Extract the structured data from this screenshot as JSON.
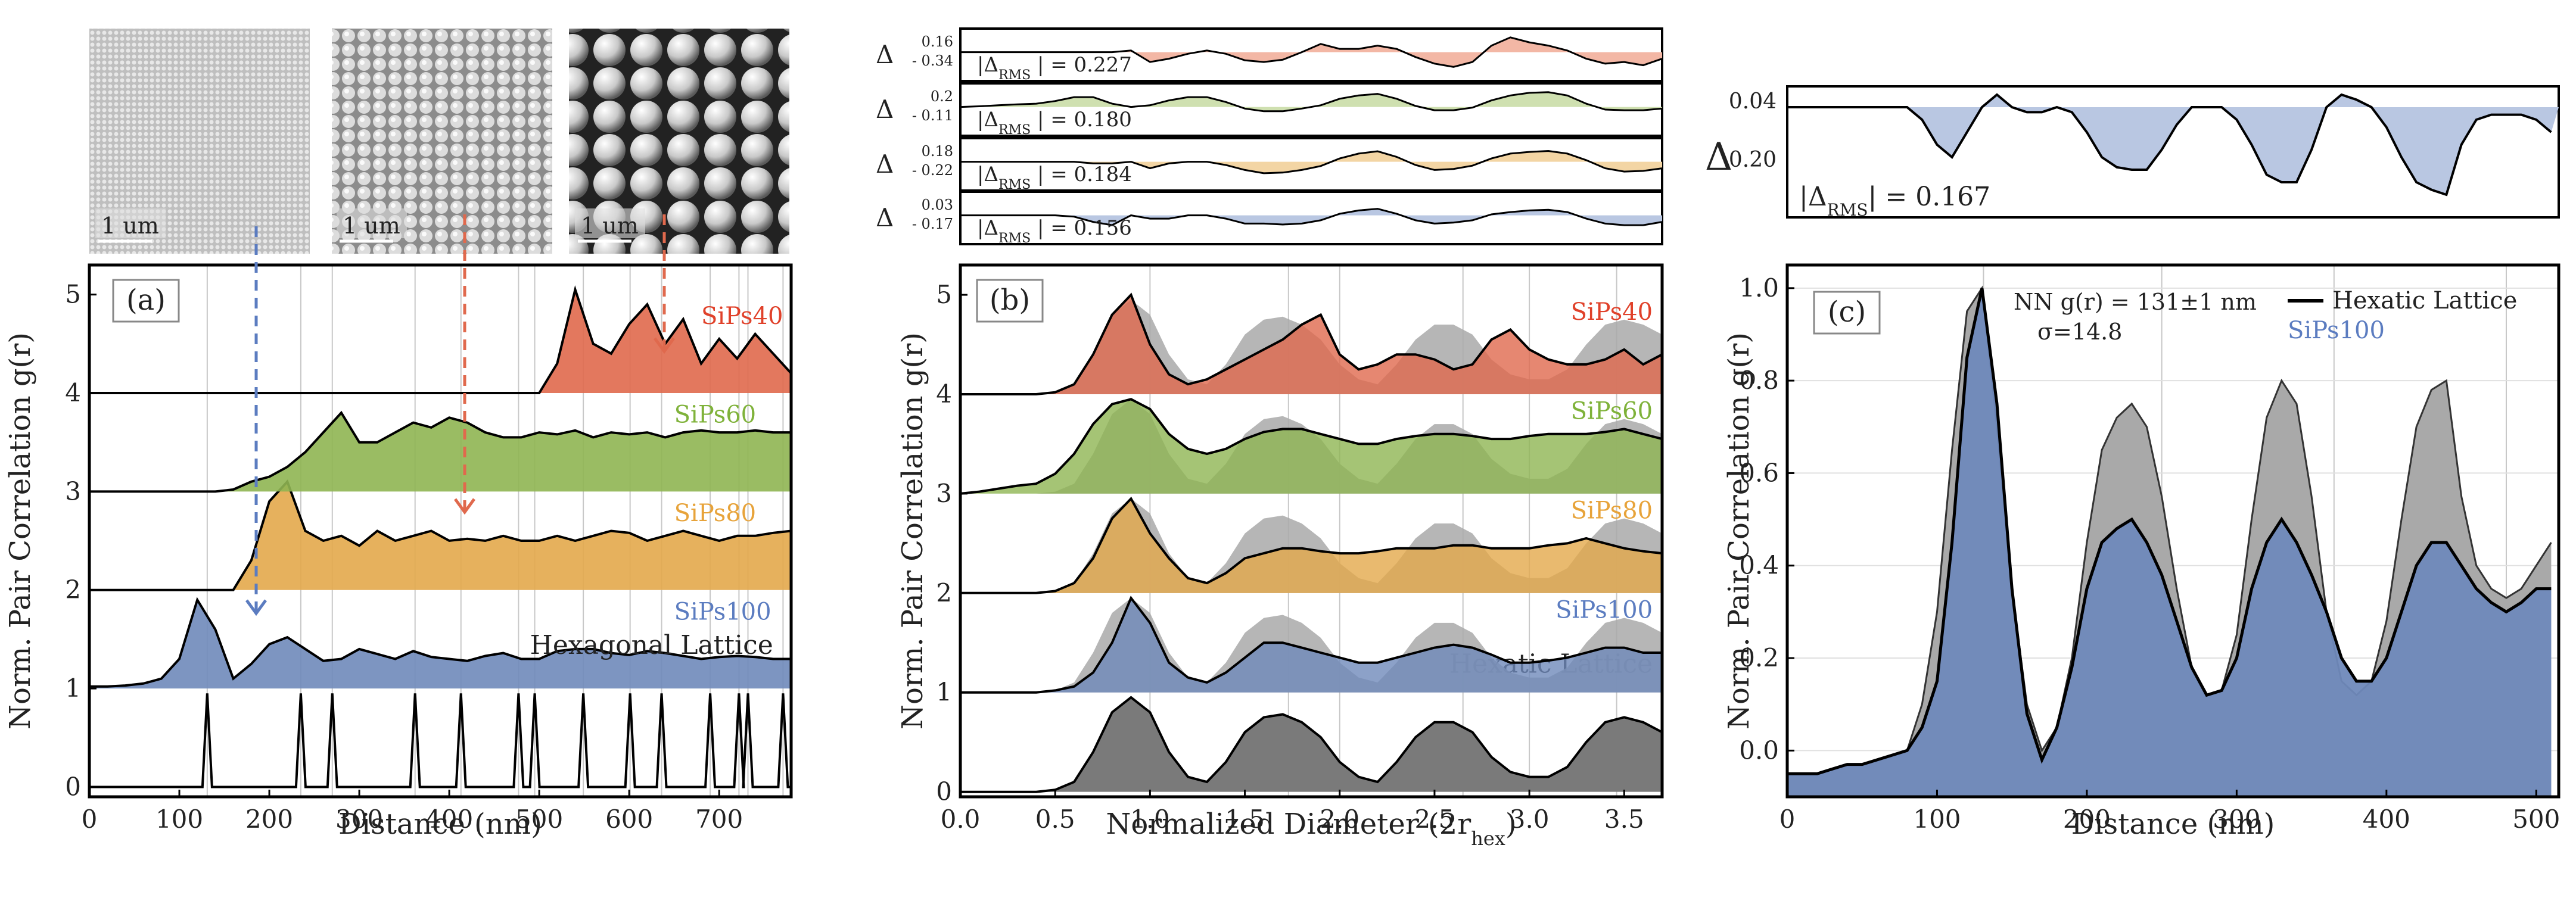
{
  "colors": {
    "siPs40": "#e0694d",
    "siPs40_light": "#f3b7a5",
    "siPs60": "#8fb552",
    "siPs60_light": "#cfe0b0",
    "siPs80": "#e3a94b",
    "siPs80_light": "#f3d5a4",
    "siPs100": "#6f89ba",
    "siPs100_light": "#b9c7e2",
    "hex": "#7a7a7a",
    "grid": "#c8c8c8",
    "lbl40": "#e0412a",
    "lbl60": "#7fb23a",
    "lbl80": "#e7a33a",
    "lbl100": "#5b7cc0"
  },
  "micrographs": {
    "scale_bar": "1 um",
    "count": 3
  },
  "chart_data": [
    {
      "type": "area",
      "panel": "(a)",
      "title": "",
      "xlabel": "Distance  (nm)",
      "ylabel": "Norm. Pair Correlation g(r)",
      "xlim": [
        0,
        780
      ],
      "ylim": [
        -0.1,
        5.3
      ],
      "xticks": [
        0,
        100,
        200,
        300,
        400,
        500,
        600,
        700
      ],
      "yticks": [
        0,
        1,
        2,
        3,
        4,
        5
      ],
      "grid": true,
      "lattice_label": "Hexagonal Lattice",
      "lattice_peaks": [
        131,
        235,
        270,
        362,
        413,
        477,
        495,
        549,
        601,
        636,
        690,
        722,
        732,
        771
      ],
      "series": [
        {
          "name": "SiPs100",
          "offset": 1,
          "start": 0,
          "step": 20,
          "values": [
            0.02,
            0.02,
            0.03,
            0.05,
            0.1,
            0.3,
            0.9,
            0.6,
            0.1,
            0.25,
            0.45,
            0.52,
            0.4,
            0.28,
            0.3,
            0.4,
            0.35,
            0.3,
            0.38,
            0.32,
            0.3,
            0.28,
            0.33,
            0.36,
            0.3,
            0.3,
            0.38,
            0.4,
            0.4,
            0.36,
            0.34,
            0.38,
            0.36,
            0.33,
            0.3,
            0.32,
            0.33,
            0.32,
            0.3,
            0.3
          ]
        },
        {
          "name": "SiPs80",
          "offset": 2,
          "start": 0,
          "step": 20,
          "values": [
            0,
            0,
            0,
            0,
            0,
            0,
            0,
            0,
            0,
            0.3,
            0.9,
            1.1,
            0.6,
            0.5,
            0.55,
            0.45,
            0.6,
            0.5,
            0.55,
            0.6,
            0.5,
            0.52,
            0.5,
            0.55,
            0.5,
            0.5,
            0.55,
            0.5,
            0.55,
            0.6,
            0.58,
            0.5,
            0.55,
            0.6,
            0.55,
            0.5,
            0.55,
            0.55,
            0.58,
            0.6
          ]
        },
        {
          "name": "SiPs60",
          "offset": 3,
          "start": 0,
          "step": 20,
          "values": [
            0,
            0,
            0,
            0,
            0,
            0,
            0,
            0,
            0.02,
            0.1,
            0.15,
            0.25,
            0.4,
            0.6,
            0.8,
            0.5,
            0.5,
            0.6,
            0.7,
            0.65,
            0.75,
            0.7,
            0.6,
            0.55,
            0.55,
            0.6,
            0.58,
            0.62,
            0.55,
            0.6,
            0.58,
            0.6,
            0.55,
            0.6,
            0.62,
            0.6,
            0.6,
            0.62,
            0.6,
            0.6
          ]
        },
        {
          "name": "SiPs40",
          "offset": 4,
          "start": 0,
          "step": 20,
          "values": [
            0,
            0,
            0,
            0,
            0,
            0,
            0,
            0,
            0,
            0,
            0,
            0,
            0,
            0,
            0,
            0,
            0,
            0,
            0,
            0,
            0,
            0,
            0,
            0,
            0,
            0,
            0.3,
            1.05,
            0.5,
            0.4,
            0.7,
            0.9,
            0.5,
            0.75,
            0.3,
            0.55,
            0.35,
            0.6,
            0.4,
            0.2
          ]
        }
      ]
    },
    {
      "type": "area",
      "panel": "(b)",
      "xlabel": "Normalized Diameter (2r",
      "xlabel_sub": "hex",
      "xlabel_end": ")",
      "ylabel": "Norm. Pair Correlation g(r)",
      "xlim": [
        0,
        3.7
      ],
      "ylim": [
        -0.05,
        5.3
      ],
      "xticks": [
        0.0,
        0.5,
        1.0,
        1.5,
        2.0,
        2.5,
        3.0,
        3.5
      ],
      "xtick_labels": [
        "0.0",
        "0.5",
        "1.0",
        "1.5",
        "2.0",
        "2.5",
        "3.0",
        "3.5"
      ],
      "yticks": [
        0,
        1,
        2,
        3,
        4,
        5
      ],
      "grid": true,
      "lattice_label": "Hexatic Lattice",
      "hexatic": {
        "start": 0,
        "step": 0.1,
        "values": [
          0,
          0,
          0,
          0,
          0,
          0.02,
          0.1,
          0.4,
          0.8,
          0.95,
          0.8,
          0.4,
          0.15,
          0.1,
          0.3,
          0.6,
          0.75,
          0.78,
          0.7,
          0.55,
          0.3,
          0.15,
          0.1,
          0.3,
          0.55,
          0.7,
          0.7,
          0.6,
          0.35,
          0.2,
          0.15,
          0.15,
          0.25,
          0.5,
          0.7,
          0.75,
          0.7,
          0.6
        ]
      },
      "series": [
        {
          "name": "SiPs100",
          "offset": 1,
          "start": 0,
          "step": 0.1,
          "values": [
            0,
            0,
            0,
            0,
            0,
            0.02,
            0.06,
            0.2,
            0.5,
            0.95,
            0.7,
            0.3,
            0.15,
            0.1,
            0.2,
            0.35,
            0.5,
            0.5,
            0.45,
            0.4,
            0.35,
            0.3,
            0.3,
            0.35,
            0.4,
            0.45,
            0.48,
            0.45,
            0.38,
            0.3,
            0.3,
            0.32,
            0.35,
            0.4,
            0.45,
            0.45,
            0.4,
            0.4
          ]
        },
        {
          "name": "SiPs80",
          "offset": 2,
          "start": 0,
          "step": 0.1,
          "values": [
            0,
            0,
            0,
            0,
            0,
            0.02,
            0.1,
            0.35,
            0.75,
            0.95,
            0.6,
            0.35,
            0.15,
            0.1,
            0.2,
            0.35,
            0.4,
            0.45,
            0.45,
            0.42,
            0.4,
            0.4,
            0.42,
            0.45,
            0.45,
            0.45,
            0.48,
            0.48,
            0.45,
            0.45,
            0.45,
            0.48,
            0.5,
            0.55,
            0.5,
            0.45,
            0.42,
            0.4
          ]
        },
        {
          "name": "SiPs60",
          "offset": 3,
          "start": 0,
          "step": 0.1,
          "values": [
            0,
            0.02,
            0.05,
            0.08,
            0.1,
            0.2,
            0.4,
            0.7,
            0.9,
            0.95,
            0.85,
            0.6,
            0.45,
            0.4,
            0.45,
            0.55,
            0.62,
            0.65,
            0.65,
            0.6,
            0.55,
            0.5,
            0.5,
            0.55,
            0.58,
            0.6,
            0.6,
            0.58,
            0.55,
            0.55,
            0.58,
            0.6,
            0.6,
            0.6,
            0.62,
            0.65,
            0.6,
            0.55
          ]
        },
        {
          "name": "SiPs40",
          "offset": 4,
          "start": 0,
          "step": 0.1,
          "values": [
            0,
            0,
            0,
            0,
            0,
            0.02,
            0.1,
            0.4,
            0.8,
            1.0,
            0.5,
            0.2,
            0.1,
            0.15,
            0.25,
            0.35,
            0.45,
            0.55,
            0.7,
            0.8,
            0.4,
            0.25,
            0.3,
            0.4,
            0.4,
            0.35,
            0.25,
            0.3,
            0.55,
            0.65,
            0.45,
            0.35,
            0.3,
            0.3,
            0.35,
            0.45,
            0.3,
            0.4
          ]
        }
      ],
      "delta_rms": [
        {
          "name": "SiPs40",
          "top": "0.16",
          "bottom": "- 0.34",
          "label": "= 0.227"
        },
        {
          "name": "SiPs60",
          "top": "0.2",
          "bottom": "- 0.11",
          "label": "= 0.180"
        },
        {
          "name": "SiPs80",
          "top": "0.18",
          "bottom": "- 0.22",
          "label": "= 0.184"
        },
        {
          "name": "SiPs100",
          "top": "0.03",
          "bottom": "- 0.17",
          "label": "= 0.156"
        }
      ]
    },
    {
      "type": "area",
      "panel": "(c)",
      "xlabel": "Distance  (nm)",
      "ylabel": "Norm. Pair Correlation g(r)",
      "xlim": [
        0,
        515
      ],
      "ylim": [
        -0.1,
        1.05
      ],
      "xticks": [
        0,
        100,
        200,
        300,
        400,
        500
      ],
      "yticks": [
        0.0,
        0.2,
        0.4,
        0.6,
        0.8,
        1.0
      ],
      "ytick_labels": [
        "0.0",
        "0.2",
        "0.4",
        "0.6",
        "0.8",
        "1.0"
      ],
      "grid": true,
      "annotation": "NN g(r) = 131±1 nm",
      "annotation2": "σ=14.8",
      "legend": [
        {
          "name": "Hexatic Lattice"
        },
        {
          "name": "SiPs100"
        }
      ],
      "delta": {
        "top": "0.04",
        "bottom": "0.20",
        "label": "= 0.167"
      },
      "hexatic": {
        "start": 0,
        "step": 10,
        "values": [
          -0.05,
          -0.05,
          -0.05,
          -0.04,
          -0.03,
          -0.03,
          -0.02,
          -0.01,
          0.0,
          0.1,
          0.3,
          0.65,
          0.95,
          1.0,
          0.7,
          0.35,
          0.1,
          0.0,
          0.05,
          0.2,
          0.45,
          0.65,
          0.72,
          0.75,
          0.7,
          0.55,
          0.35,
          0.18,
          0.12,
          0.13,
          0.25,
          0.5,
          0.72,
          0.8,
          0.75,
          0.55,
          0.3,
          0.15,
          0.12,
          0.15,
          0.28,
          0.5,
          0.7,
          0.78,
          0.8,
          0.55,
          0.4,
          0.35,
          0.33,
          0.35,
          0.4,
          0.45
        ]
      },
      "series": [
        {
          "name": "SiPs100",
          "start": 0,
          "step": 10,
          "values": [
            -0.05,
            -0.05,
            -0.05,
            -0.04,
            -0.03,
            -0.03,
            -0.02,
            -0.01,
            0.0,
            0.05,
            0.15,
            0.45,
            0.85,
            1.0,
            0.75,
            0.35,
            0.08,
            -0.02,
            0.05,
            0.18,
            0.35,
            0.45,
            0.48,
            0.5,
            0.45,
            0.38,
            0.28,
            0.18,
            0.12,
            0.13,
            0.2,
            0.35,
            0.45,
            0.5,
            0.45,
            0.38,
            0.3,
            0.2,
            0.15,
            0.15,
            0.2,
            0.3,
            0.4,
            0.45,
            0.45,
            0.4,
            0.35,
            0.32,
            0.3,
            0.32,
            0.35,
            0.35
          ]
        }
      ]
    }
  ]
}
